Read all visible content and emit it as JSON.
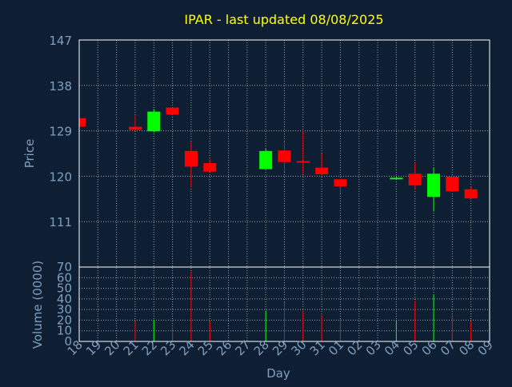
{
  "colors": {
    "background": "#0f1f33",
    "title": "#ffff00",
    "axis_text": "#7f9fbf",
    "grid": "#bfbfbf",
    "up": "#00ff00",
    "down": "#ff0000",
    "axis_line": "#ffffff"
  },
  "chart_data": [
    {
      "type": "candlestick",
      "title": "IPAR - last updated 08/08/2025",
      "ylabel": "Price",
      "ylim": [
        102,
        147
      ],
      "yticks": [
        111,
        120,
        129,
        138,
        147
      ],
      "grid": true,
      "categories": [
        "18",
        "19",
        "20",
        "21",
        "22",
        "23",
        "24",
        "25",
        "26",
        "27",
        "28",
        "29",
        "30",
        "31",
        "01",
        "02",
        "03",
        "04",
        "05",
        "06",
        "07",
        "08",
        "09"
      ],
      "candles": [
        {
          "day": "18",
          "open": 131.5,
          "close": 129.8,
          "high": 131.5,
          "low": 129.8
        },
        {
          "day": "21",
          "open": 129.8,
          "close": 129.2,
          "high": 132.0,
          "low": 129.0
        },
        {
          "day": "22",
          "open": 128.9,
          "close": 132.8,
          "high": 133.3,
          "low": 128.7
        },
        {
          "day": "23",
          "open": 133.6,
          "close": 132.2,
          "high": 133.6,
          "low": 132.2
        },
        {
          "day": "24",
          "open": 125.0,
          "close": 121.9,
          "high": 126.8,
          "low": 117.8
        },
        {
          "day": "25",
          "open": 122.6,
          "close": 120.9,
          "high": 123.4,
          "low": 120.9
        },
        {
          "day": "28",
          "open": 121.4,
          "close": 125.0,
          "high": 125.4,
          "low": 121.4
        },
        {
          "day": "29",
          "open": 125.1,
          "close": 122.8,
          "high": 126.8,
          "low": 120.9
        },
        {
          "day": "30",
          "open": 123.0,
          "close": 122.7,
          "high": 129.0,
          "low": 120.5
        },
        {
          "day": "31",
          "open": 121.7,
          "close": 120.4,
          "high": 124.5,
          "low": 120.2
        },
        {
          "day": "01",
          "open": 119.4,
          "close": 118.0,
          "high": 119.4,
          "low": 116.6
        },
        {
          "day": "04",
          "open": 119.5,
          "close": 119.7,
          "high": 119.9,
          "low": 119.3
        },
        {
          "day": "05",
          "open": 120.5,
          "close": 118.2,
          "high": 122.7,
          "low": 117.4
        },
        {
          "day": "06",
          "open": 115.9,
          "close": 120.5,
          "high": 121.7,
          "low": 113.0
        },
        {
          "day": "07",
          "open": 119.9,
          "close": 117.0,
          "high": 119.9,
          "low": 116.9
        },
        {
          "day": "08",
          "open": 117.4,
          "close": 115.6,
          "high": 117.9,
          "low": 115.6
        }
      ]
    },
    {
      "type": "bar",
      "xlabel": "Day",
      "ylabel": "Volume (0000)",
      "ylim": [
        0,
        70
      ],
      "yticks": [
        0,
        10,
        20,
        30,
        40,
        50,
        60,
        70
      ],
      "grid": true,
      "categories": [
        "18",
        "19",
        "20",
        "21",
        "22",
        "23",
        "24",
        "25",
        "26",
        "27",
        "28",
        "29",
        "30",
        "31",
        "01",
        "02",
        "03",
        "04",
        "05",
        "06",
        "07",
        "08",
        "09"
      ],
      "volumes": [
        {
          "day": "21",
          "value": 19,
          "direction": "down"
        },
        {
          "day": "22",
          "value": 20,
          "direction": "up"
        },
        {
          "day": "23",
          "value": 13,
          "direction": "down"
        },
        {
          "day": "24",
          "value": 66,
          "direction": "down"
        },
        {
          "day": "25",
          "value": 19,
          "direction": "down"
        },
        {
          "day": "28",
          "value": 29,
          "direction": "up"
        },
        {
          "day": "29",
          "value": 37,
          "direction": "down"
        },
        {
          "day": "30",
          "value": 29,
          "direction": "down"
        },
        {
          "day": "31",
          "value": 25,
          "direction": "down"
        },
        {
          "day": "01",
          "value": 21,
          "direction": "down"
        },
        {
          "day": "04",
          "value": 20,
          "direction": "up"
        },
        {
          "day": "05",
          "value": 38,
          "direction": "down"
        },
        {
          "day": "06",
          "value": 44,
          "direction": "up"
        },
        {
          "day": "07",
          "value": 25,
          "direction": "down"
        },
        {
          "day": "08",
          "value": 19,
          "direction": "down"
        }
      ]
    }
  ]
}
